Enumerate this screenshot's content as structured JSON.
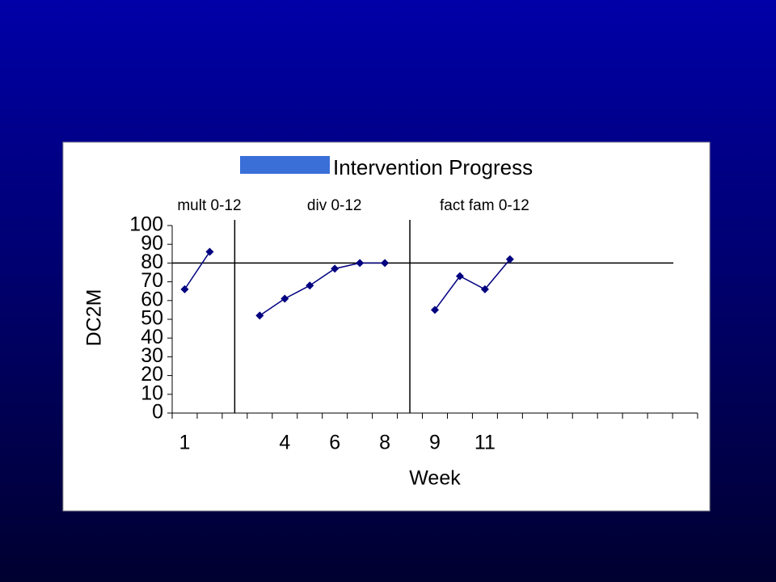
{
  "chart_data": {
    "type": "line",
    "title": "Intervention Progress",
    "phases": [
      "mult 0-12",
      "div 0-12",
      "fact fam 0-12"
    ],
    "y_label": "DC2M",
    "x_label": "Week",
    "categories": [
      "1",
      null,
      null,
      null,
      "4",
      null,
      "6",
      null,
      "8",
      null,
      "9",
      null,
      "11",
      null,
      null,
      null,
      null,
      null,
      null,
      null,
      null
    ],
    "series": [
      {
        "color": "#000080",
        "values": [
          66,
          86,
          null,
          52,
          61,
          68,
          77,
          80,
          80,
          null,
          55,
          73,
          66,
          82,
          null,
          null,
          null,
          null,
          null,
          null,
          null
        ]
      }
    ],
    "goal_line": 80,
    "ylim": [
      0,
      100
    ],
    "yticks": [
      0,
      10,
      20,
      30,
      40,
      50,
      60,
      70,
      80,
      90,
      100
    ]
  }
}
